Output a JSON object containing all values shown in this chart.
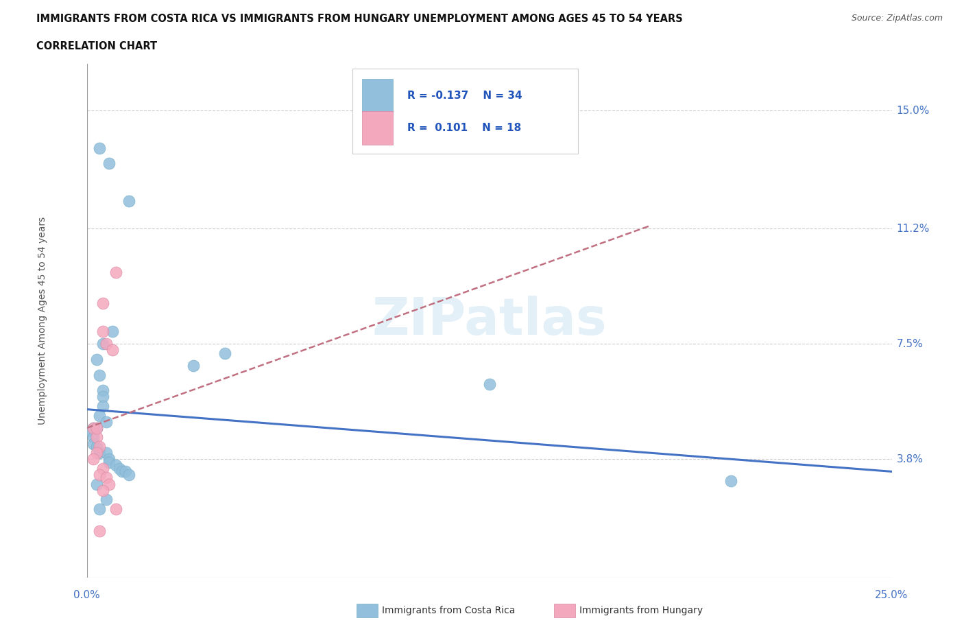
{
  "title_line1": "IMMIGRANTS FROM COSTA RICA VS IMMIGRANTS FROM HUNGARY UNEMPLOYMENT AMONG AGES 45 TO 54 YEARS",
  "title_line2": "CORRELATION CHART",
  "source": "Source: ZipAtlas.com",
  "ylabel": "Unemployment Among Ages 45 to 54 years",
  "xlim": [
    0.0,
    0.25
  ],
  "ylim": [
    0.0,
    0.165
  ],
  "ytick_labels": [
    "15.0%",
    "11.2%",
    "7.5%",
    "3.8%"
  ],
  "ytick_values": [
    0.15,
    0.112,
    0.075,
    0.038
  ],
  "xtick_label_left": "0.0%",
  "xtick_label_right": "25.0%",
  "costa_rica_color": "#92bfdc",
  "hungary_color": "#f4a8be",
  "costa_rica_edge": "#7aafc8",
  "hungary_edge": "#d888a0",
  "trend_cr_color": "#4472c4",
  "trend_hu_color": "#c07080",
  "watermark": "ZIPatlas",
  "legend_R1": "-0.137",
  "legend_N1": "34",
  "legend_R2": "0.101",
  "legend_N2": "18",
  "label_cr": "Immigrants from Costa Rica",
  "label_hu": "Immigrants from Hungary",
  "costa_rica_points_x": [
    0.007,
    0.013,
    0.004,
    0.008,
    0.005,
    0.003,
    0.004,
    0.005,
    0.005,
    0.005,
    0.004,
    0.006,
    0.003,
    0.002,
    0.001,
    0.002,
    0.002,
    0.003,
    0.004,
    0.006,
    0.007,
    0.007,
    0.009,
    0.01,
    0.011,
    0.012,
    0.013,
    0.033,
    0.043,
    0.125,
    0.2,
    0.003,
    0.004,
    0.006
  ],
  "costa_rica_points_y": [
    0.133,
    0.121,
    0.138,
    0.079,
    0.075,
    0.07,
    0.065,
    0.06,
    0.058,
    0.055,
    0.052,
    0.05,
    0.048,
    0.048,
    0.047,
    0.045,
    0.043,
    0.042,
    0.04,
    0.04,
    0.038,
    0.037,
    0.036,
    0.035,
    0.034,
    0.034,
    0.033,
    0.068,
    0.072,
    0.062,
    0.031,
    0.03,
    0.022,
    0.025
  ],
  "hungary_points_x": [
    0.009,
    0.005,
    0.005,
    0.006,
    0.008,
    0.002,
    0.003,
    0.004,
    0.003,
    0.002,
    0.005,
    0.004,
    0.006,
    0.007,
    0.005,
    0.009,
    0.004,
    0.003
  ],
  "hungary_points_y": [
    0.098,
    0.088,
    0.079,
    0.075,
    0.073,
    0.048,
    0.045,
    0.042,
    0.04,
    0.038,
    0.035,
    0.033,
    0.032,
    0.03,
    0.028,
    0.022,
    0.015,
    0.048
  ],
  "trend_cr_x0": 0.0,
  "trend_cr_y0": 0.054,
  "trend_cr_x1": 0.25,
  "trend_cr_y1": 0.034,
  "trend_hu_x0": 0.0,
  "trend_hu_y0": 0.048,
  "trend_hu_x1": 0.175,
  "trend_hu_y1": 0.113
}
